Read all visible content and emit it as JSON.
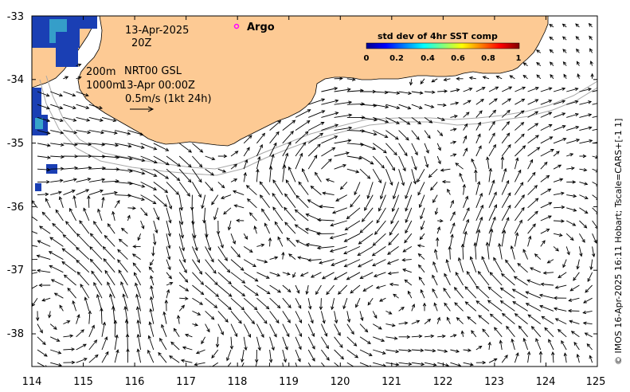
{
  "map": {
    "x_ticks": [
      "114",
      "115",
      "116",
      "117",
      "118",
      "119",
      "120",
      "121",
      "122",
      "123",
      "124",
      "125"
    ],
    "y_ticks": [
      "-33",
      "-34",
      "-35",
      "-36",
      "-37",
      "-38"
    ],
    "lon_range": [
      114,
      125
    ],
    "lat_range": [
      -38.5,
      -33
    ],
    "colors": {
      "land": "#fdca94",
      "coast": "#000000",
      "frame": "#000000",
      "isobath": "#a8a8a8",
      "argo_marker": "#ff00ff",
      "sst_high": "#1a3fb4",
      "sst_mid": "#3fbfd0"
    }
  },
  "annotations": {
    "date": "13-Apr-2025",
    "time": "20Z",
    "depth_200": "200m",
    "product": "NRT00 GSL",
    "depth_1000": "1000m",
    "analysis_time": "13-Apr 00:00Z",
    "scale_label": "0.5m/s (1kt 24h)",
    "argo_label": "Argo"
  },
  "colorbar": {
    "title": "std dev of 4hr SST comp",
    "ticks": [
      "0",
      "0.2",
      "0.4",
      "0.6",
      "0.8",
      "1"
    ]
  },
  "credit": "© IMOS 16-Apr-2025 16:11 Hobart; Tscale=CARS+[-1 1]"
}
